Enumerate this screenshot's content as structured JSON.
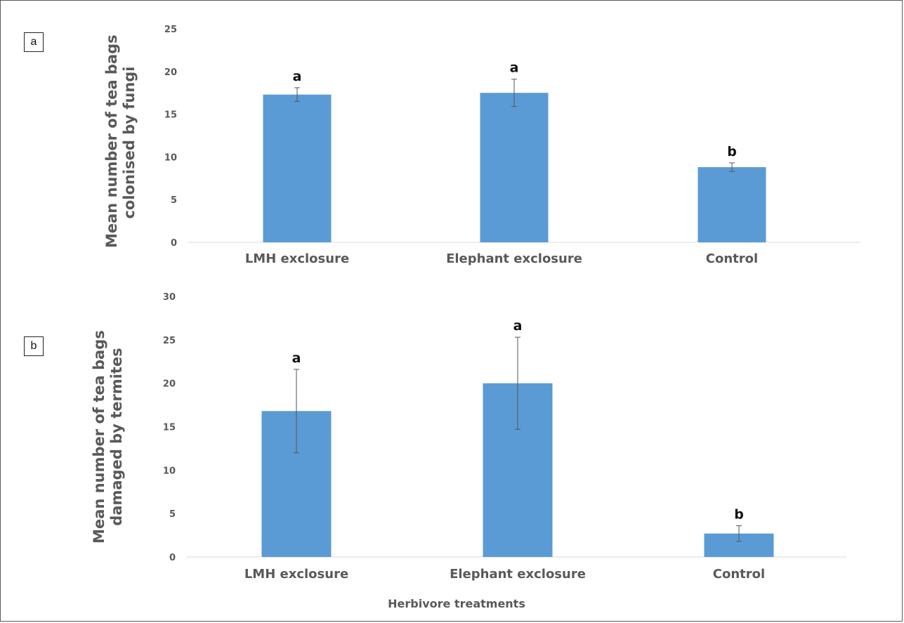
{
  "panel_a_label": "a",
  "panel_b_label": "b",
  "chart_data": [
    {
      "type": "bar",
      "categories": [
        "LMH exclosure",
        "Elephant exclosure",
        "Control"
      ],
      "values": [
        17.3,
        17.5,
        8.8
      ],
      "error": [
        0.8,
        1.6,
        0.5
      ],
      "significance": [
        "a",
        "a",
        "b"
      ],
      "ylabel_lines": [
        "Mean number of tea bags",
        "colonised by fungi"
      ],
      "xlabel": "",
      "ylim": [
        0,
        25
      ],
      "yticks": [
        0,
        5,
        10,
        15,
        20,
        25
      ],
      "grid": false,
      "colors": {
        "bar": "#5b9bd5",
        "axis": "#d9d9d9",
        "tick_text": "#595959",
        "error": "#555555"
      }
    },
    {
      "type": "bar",
      "categories": [
        "LMH exclosure",
        "Elephant exclosure",
        "Control"
      ],
      "values": [
        16.8,
        20.0,
        2.7
      ],
      "error": [
        4.8,
        5.3,
        0.9
      ],
      "significance": [
        "a",
        "a",
        "b"
      ],
      "ylabel_lines": [
        "Mean number of tea bags",
        "damaged by termites"
      ],
      "xlabel": "Herbivore treatments",
      "ylim": [
        0,
        30
      ],
      "yticks": [
        0,
        5,
        10,
        15,
        20,
        25,
        30
      ],
      "grid": false,
      "colors": {
        "bar": "#5b9bd5",
        "axis": "#d9d9d9",
        "tick_text": "#595959",
        "error": "#555555"
      }
    }
  ]
}
